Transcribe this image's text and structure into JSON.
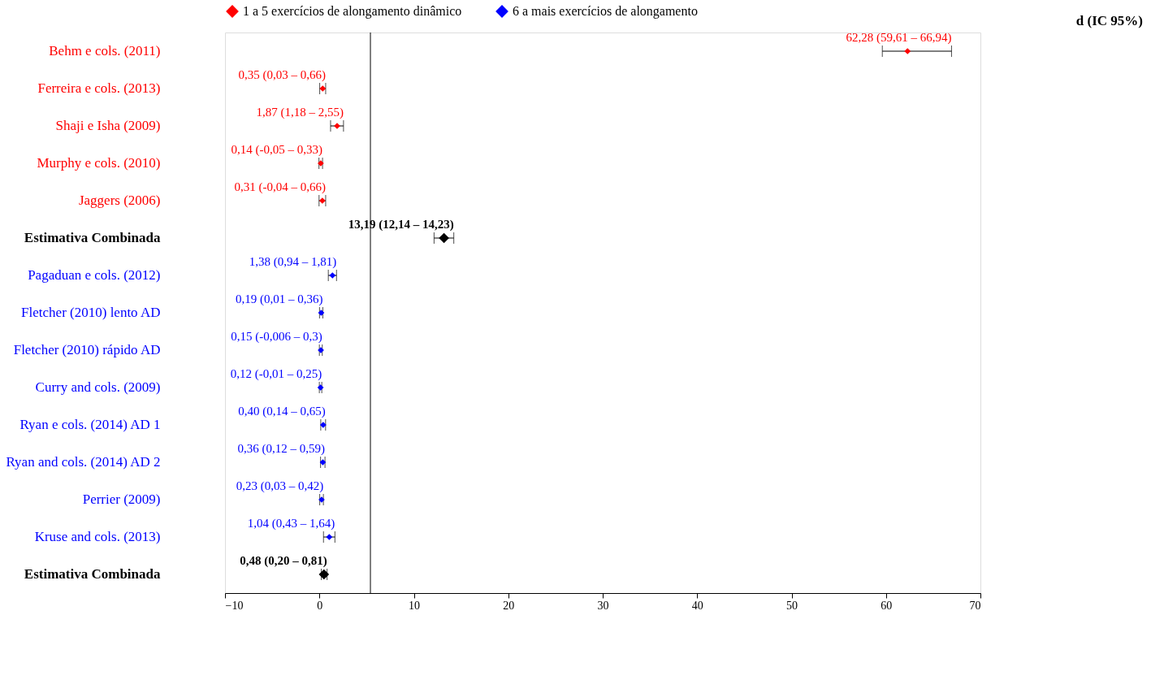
{
  "chart_data": {
    "type": "scatter",
    "orientation": "horizontal",
    "marker": "diamond",
    "legend": "top",
    "grid": false,
    "annotations": [
      "d (IC 95%)"
    ],
    "categories": [
      "Behm e cols. (2011)",
      "Ferreira e cols. (2013)",
      "Shaji e Isha (2009)",
      "Murphy e cols. (2010)",
      "Jaggers (2006)",
      "Estimativa Combinada",
      "Pagaduan e cols. (2012)",
      "Fletcher (2010) lento AD",
      "Fletcher (2010) rápido AD",
      "Curry and cols. (2009)",
      "Ryan e cols. (2014) AD 1",
      "Ryan and cols. (2014) AD 2",
      "Perrier (2009)",
      "Kruse and cols. (2013)",
      "Estimativa Combinada"
    ],
    "xlim": [
      -10,
      70
    ],
    "xticks": [
      -10,
      0,
      10,
      20,
      30,
      40,
      50,
      60,
      70
    ],
    "ref_lines": [
      {
        "axis": "x",
        "value": 5.4,
        "color": "#000000"
      }
    ],
    "series": [
      {
        "name": "1 a 5 exercícios de alongamento dinâmico",
        "color": "#ff0000",
        "values": [
          62.28,
          0.35,
          1.87,
          0.14,
          0.31,
          null,
          null,
          null,
          null,
          null,
          null,
          null,
          null,
          null,
          null
        ],
        "errors": [
          [
            59.61,
            66.94
          ],
          [
            0.03,
            0.66
          ],
          [
            1.18,
            2.55
          ],
          [
            -0.05,
            0.33
          ],
          [
            -0.04,
            0.66
          ],
          null,
          null,
          null,
          null,
          null,
          null,
          null,
          null,
          null,
          null
        ],
        "value_labels": [
          "62,28 (59,61 – 66,94)",
          "0,35 (0,03 – 0,66)",
          "1,87 (1,18 – 2,55)",
          "0,14 (-0,05 – 0,33)",
          "0,31 (-0,04 – 0,66)",
          null,
          null,
          null,
          null,
          null,
          null,
          null,
          null,
          null,
          null
        ]
      },
      {
        "color": "#000000",
        "values": [
          null,
          null,
          null,
          null,
          null,
          13.19,
          null,
          null,
          null,
          null,
          null,
          null,
          null,
          null,
          0.48
        ],
        "errors": [
          null,
          null,
          null,
          null,
          null,
          [
            12.14,
            14.23
          ],
          null,
          null,
          null,
          null,
          null,
          null,
          null,
          null,
          [
            0.2,
            0.81
          ]
        ],
        "value_labels": [
          null,
          null,
          null,
          null,
          null,
          "13,19 (12,14 – 14,23)",
          null,
          null,
          null,
          null,
          null,
          null,
          null,
          null,
          "0,48 (0,20 – 0,81)"
        ]
      },
      {
        "name": "6 a mais exercícios de alongamento",
        "color": "#0000ff",
        "values": [
          null,
          null,
          null,
          null,
          null,
          null,
          1.38,
          0.19,
          0.15,
          0.12,
          0.4,
          0.36,
          0.23,
          1.04,
          null
        ],
        "errors": [
          null,
          null,
          null,
          null,
          null,
          null,
          [
            0.94,
            1.81
          ],
          [
            0.01,
            0.36
          ],
          [
            -0.006,
            0.3
          ],
          [
            -0.01,
            0.25
          ],
          [
            0.14,
            0.65
          ],
          [
            0.12,
            0.59
          ],
          [
            0.03,
            0.42
          ],
          [
            0.43,
            1.64
          ],
          null
        ],
        "value_labels": [
          null,
          null,
          null,
          null,
          null,
          null,
          "1,38 (0,94 – 1,81)",
          "0,19 (0,01 – 0,36)",
          "0,15 (-0,006 – 0,3)",
          "0,12 (-0,01 – 0,25)",
          "0,40 (0,14 – 0,65)",
          "0,36 (0,12 – 0,59)",
          "0,23 (0,03 – 0,42)",
          "1,04 (0,43 – 1,64)",
          null
        ]
      }
    ]
  }
}
